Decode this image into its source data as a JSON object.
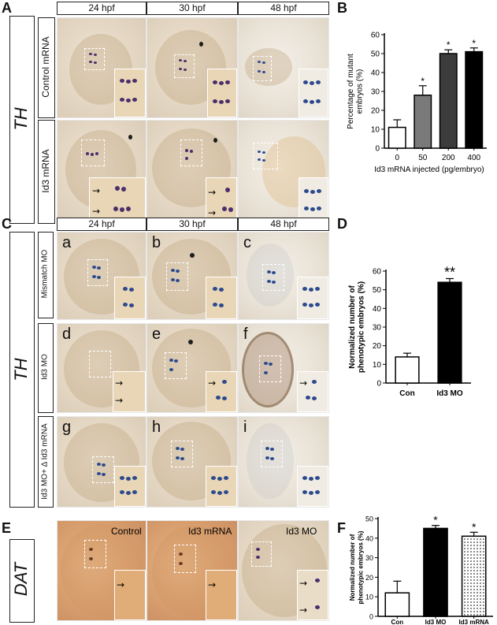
{
  "panels": {
    "A": {
      "letter": "A",
      "gene": "TH",
      "headers": [
        "24 hpf",
        "30 hpf",
        "48 hpf"
      ],
      "rows": [
        "Control mRNA",
        "Id3 mRNA"
      ]
    },
    "B": {
      "letter": "B"
    },
    "C": {
      "letter": "C",
      "gene": "TH",
      "headers": [
        "24 hpf",
        "30 hpf",
        "48 hpf"
      ],
      "rows": [
        "Mismatch MO",
        "Id3 MO",
        "Id3 MO+ Δ Id3 mRNA"
      ],
      "subletters": [
        "a",
        "b",
        "c",
        "d",
        "e",
        "f",
        "g",
        "h",
        "i"
      ]
    },
    "D": {
      "letter": "D"
    },
    "E": {
      "letter": "E",
      "gene": "DAT",
      "conditions": [
        "Control",
        "Id3 mRNA",
        "Id3 MO"
      ]
    },
    "F": {
      "letter": "F"
    }
  },
  "chart_data": [
    {
      "panel": "B",
      "type": "bar",
      "categories": [
        "0",
        "50",
        "200",
        "400"
      ],
      "values": [
        11,
        28,
        50,
        51
      ],
      "errors": [
        4,
        5,
        2,
        2
      ],
      "significance": [
        "",
        "*",
        "*",
        "*"
      ],
      "fills": [
        "#ffffff",
        "#7a7a7a",
        "#3c3c3c",
        "#000000"
      ],
      "ylabel": "Percentage of mutant embryos (%)",
      "xlabel": "Id3 mRNA injected (pg/embryo)",
      "ylim": [
        0,
        60
      ],
      "yticks": [
        0,
        10,
        20,
        30,
        40,
        50,
        60
      ]
    },
    {
      "panel": "D",
      "type": "bar",
      "categories": [
        "Con",
        "Id3 MO"
      ],
      "values": [
        14,
        54
      ],
      "errors": [
        2,
        2
      ],
      "significance": [
        "",
        "**"
      ],
      "fills": [
        "#ffffff",
        "#000000"
      ],
      "ylabel": "Normalized number of phenotypic embryos (%)",
      "xlabel": "",
      "ylim": [
        0,
        60
      ],
      "yticks": [
        0,
        10,
        20,
        30,
        40,
        50,
        60
      ]
    },
    {
      "panel": "F",
      "type": "bar",
      "categories": [
        "Con",
        "Id3 MO",
        "Id3 mRNA"
      ],
      "values": [
        12,
        45,
        41
      ],
      "errors": [
        6,
        1.5,
        2
      ],
      "significance": [
        "",
        "*",
        "*"
      ],
      "fills": [
        "#ffffff",
        "#000000",
        "dotted"
      ],
      "ylabel": "Normalized number of phenotypic embryos (%)",
      "xlabel": "",
      "ylim": [
        0,
        50
      ],
      "yticks": [
        0,
        10,
        20,
        30,
        40,
        50
      ]
    }
  ]
}
